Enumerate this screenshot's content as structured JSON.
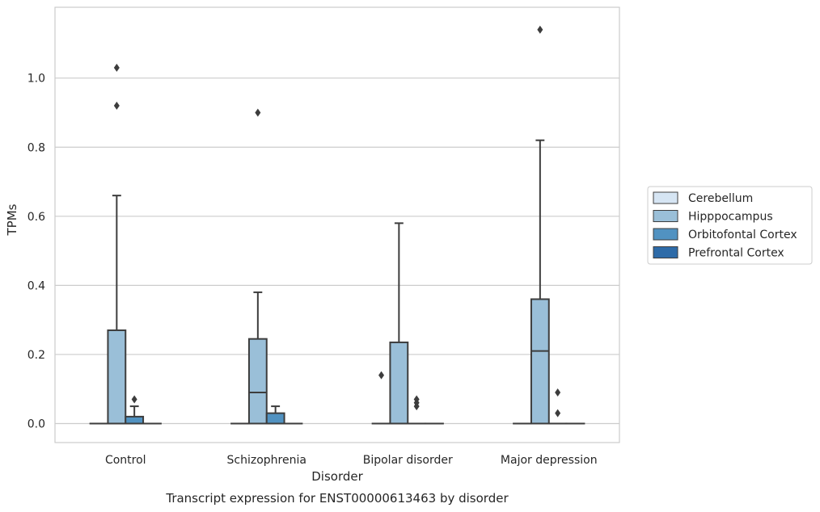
{
  "chart_data": {
    "type": "box",
    "title": "",
    "caption": "Transcript expression for ENST00000613463 by disorder",
    "xlabel": "Disorder",
    "ylabel": "TPMs",
    "ylim": [
      -0.055,
      1.205
    ],
    "yticks": [
      0.0,
      0.2,
      0.4,
      0.6,
      0.8,
      1.0
    ],
    "ytick_labels": [
      "0.0",
      "0.2",
      "0.4",
      "0.6",
      "0.8",
      "1.0"
    ],
    "grid": "horizontal",
    "legend_position": "right",
    "categories": [
      "Control",
      "Schizophrenia",
      "Bipolar disorder",
      "Major depression"
    ],
    "series": [
      {
        "name": "Cerebellum",
        "color": "#d6e5f3",
        "boxes": [
          {
            "q1": 0,
            "median": 0,
            "q3": 0,
            "whislo": 0,
            "whishi": 0,
            "fliers": []
          },
          {
            "q1": 0,
            "median": 0,
            "q3": 0,
            "whislo": 0,
            "whishi": 0,
            "fliers": []
          },
          {
            "q1": 0,
            "median": 0,
            "q3": 0,
            "whislo": 0,
            "whishi": 0,
            "fliers": [
              0.14
            ]
          },
          {
            "q1": 0,
            "median": 0,
            "q3": 0,
            "whislo": 0,
            "whishi": 0,
            "fliers": []
          }
        ]
      },
      {
        "name": "Hipppocampus",
        "color": "#9abfd8",
        "boxes": [
          {
            "q1": 0,
            "median": 0,
            "q3": 0.27,
            "whislo": 0,
            "whishi": 0.66,
            "fliers": [
              0.92,
              1.03
            ]
          },
          {
            "q1": 0,
            "median": 0.09,
            "q3": 0.245,
            "whislo": 0,
            "whishi": 0.38,
            "fliers": [
              0.9
            ]
          },
          {
            "q1": 0,
            "median": 0,
            "q3": 0.235,
            "whislo": 0,
            "whishi": 0.58,
            "fliers": []
          },
          {
            "q1": 0,
            "median": 0.21,
            "q3": 0.36,
            "whislo": 0,
            "whishi": 0.82,
            "fliers": [
              1.14
            ]
          }
        ]
      },
      {
        "name": "Orbitofontal Cortex",
        "color": "#5192c1",
        "boxes": [
          {
            "q1": 0,
            "median": 0,
            "q3": 0.02,
            "whislo": 0,
            "whishi": 0.05,
            "fliers": [
              0.07
            ]
          },
          {
            "q1": 0,
            "median": 0,
            "q3": 0.03,
            "whislo": 0,
            "whishi": 0.05,
            "fliers": []
          },
          {
            "q1": 0,
            "median": 0,
            "q3": 0,
            "whislo": 0,
            "whishi": 0,
            "fliers": [
              0.05,
              0.06,
              0.07
            ]
          },
          {
            "q1": 0,
            "median": 0,
            "q3": 0,
            "whislo": 0,
            "whishi": 0,
            "fliers": [
              0.03,
              0.09
            ]
          }
        ]
      },
      {
        "name": "Prefrontal Cortex",
        "color": "#2e6ba8",
        "boxes": [
          {
            "q1": 0,
            "median": 0,
            "q3": 0,
            "whislo": 0,
            "whishi": 0,
            "fliers": []
          },
          {
            "q1": 0,
            "median": 0,
            "q3": 0,
            "whislo": 0,
            "whishi": 0,
            "fliers": []
          },
          {
            "q1": 0,
            "median": 0,
            "q3": 0,
            "whislo": 0,
            "whishi": 0,
            "fliers": []
          },
          {
            "q1": 0,
            "median": 0,
            "q3": 0,
            "whislo": 0,
            "whishi": 0,
            "fliers": []
          }
        ]
      }
    ]
  }
}
